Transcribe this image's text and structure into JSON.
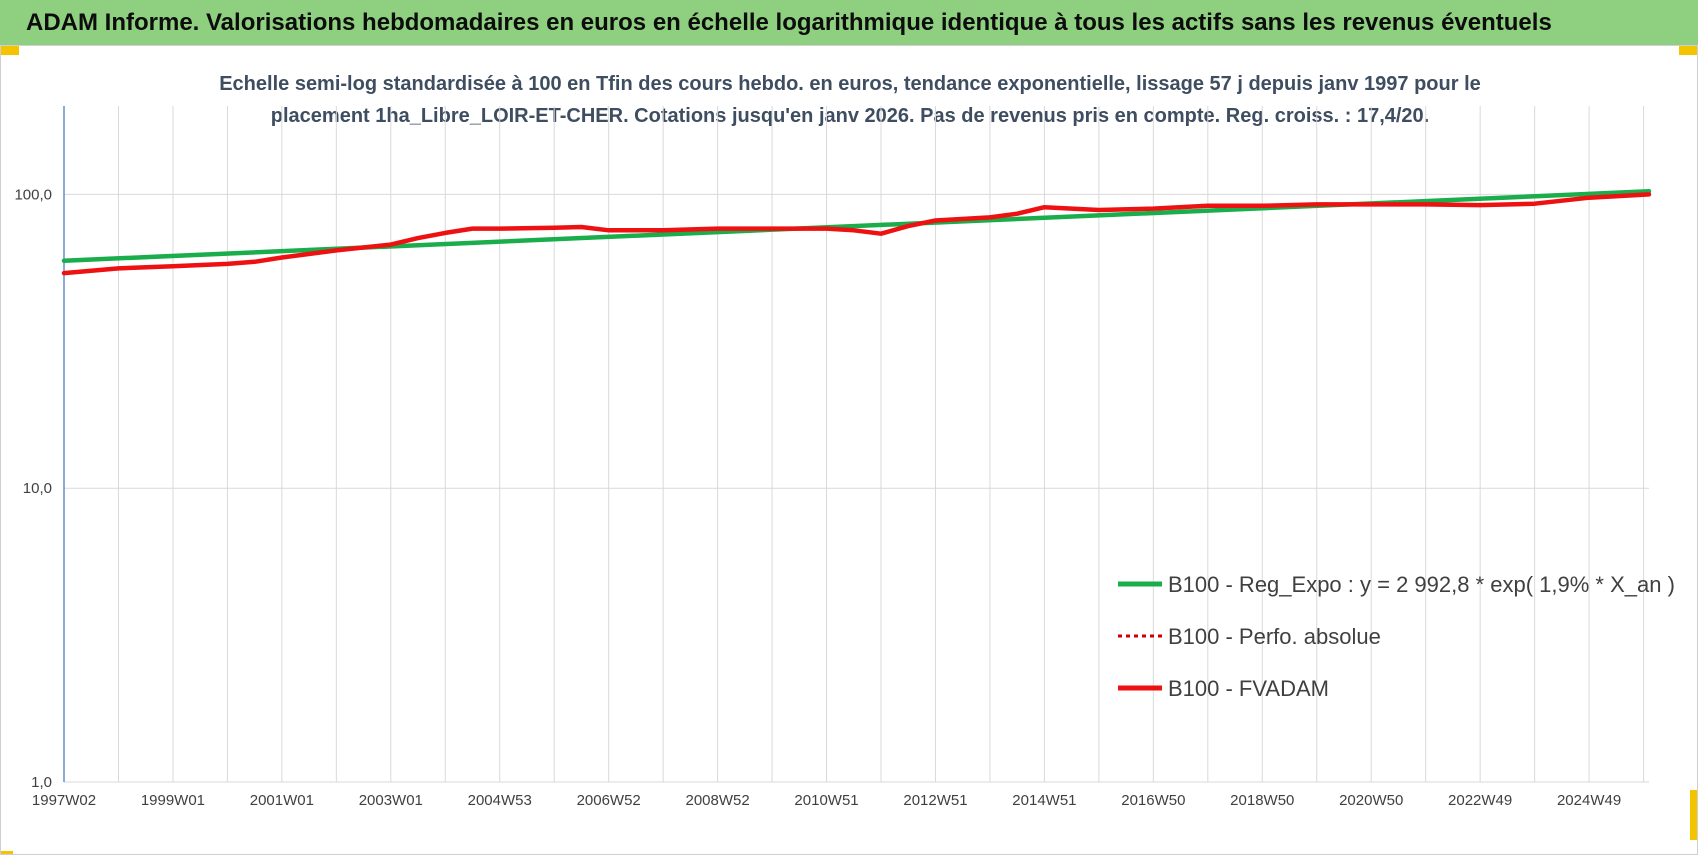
{
  "banner": {
    "title": "ADAM Informe. Valorisations hebdomadaires en euros en échelle logarithmique identique à tous les actifs sans les revenus éventuels"
  },
  "colors": {
    "banner_bg": "#8ed07f",
    "regression": "#1aad4b",
    "fvadam": "#ee1111",
    "perfo": "#cc0000",
    "gridline": "#d9d9d9",
    "axis": "#4472c4",
    "corner_marks": "#f5c400"
  },
  "chart_data": {
    "type": "line",
    "title_lines": [
      "Echelle semi-log standardisée à 100 en Tfin des cours hebdo. en euros, tendance exponentielle, lissage 57 j depuis janv 1997 pour le",
      "placement 1ha_Libre_LOIR-ET-CHER. Cotations jusqu'en janv 2026. Pas de revenus pris en compte. Reg. croiss. : 17,4/20."
    ],
    "y_scale": "log",
    "ylim": [
      1,
      200
    ],
    "y_ticks": [
      1,
      10,
      100
    ],
    "y_tick_labels": [
      "1,0",
      "10,0",
      "100,0"
    ],
    "xlim": [
      1997.0,
      2026.1
    ],
    "x_ticks": [
      1997.0,
      1999.0,
      2001.0,
      2003.0,
      2005.0,
      2007.0,
      2009.0,
      2011.0,
      2013.0,
      2015.0,
      2017.0,
      2019.0,
      2021.0,
      2023.0,
      2025.0
    ],
    "x_tick_labels": [
      "1997W02",
      "1999W01",
      "2001W01",
      "2003W01",
      "2004W53",
      "2006W52",
      "2008W52",
      "2010W51",
      "2012W51",
      "2014W51",
      "2016W50",
      "2018W50",
      "2020W50",
      "2022W49",
      "2024W49"
    ],
    "grid": true,
    "legend_position": "bottom-right",
    "series": [
      {
        "name": "B100 - Reg_Expo : y = 2 992,8 * exp( 1,9% *  X_an )",
        "style": "solid",
        "color": "#1aad4b",
        "x": [
          1997.0,
          2026.1
        ],
        "values": [
          59.5,
          102.5
        ]
      },
      {
        "name": "B100 - Perfo. absolue",
        "style": "dotted",
        "color": "#cc0000",
        "x": [],
        "values": []
      },
      {
        "name": "B100 - FVADAM",
        "style": "solid",
        "color": "#ee1111",
        "x": [
          1997.0,
          1998.0,
          1999.0,
          2000.0,
          2000.5,
          2001.0,
          2002.0,
          2003.0,
          2003.5,
          2004.0,
          2004.5,
          2005.0,
          2006.0,
          2006.5,
          2007.0,
          2008.0,
          2009.0,
          2010.0,
          2011.0,
          2011.5,
          2012.0,
          2012.5,
          2013.0,
          2014.0,
          2014.5,
          2015.0,
          2016.0,
          2017.0,
          2018.0,
          2019.0,
          2020.0,
          2021.0,
          2022.0,
          2023.0,
          2024.0,
          2025.0,
          2026.1
        ],
        "values": [
          54.0,
          56.0,
          57.0,
          58.0,
          59.0,
          61.0,
          64.5,
          67.5,
          71.0,
          74.0,
          76.5,
          76.5,
          77.0,
          77.5,
          75.5,
          75.5,
          76.5,
          76.5,
          76.5,
          75.5,
          73.5,
          78.0,
          81.5,
          83.5,
          86.0,
          90.5,
          88.5,
          89.5,
          91.5,
          91.5,
          92.5,
          92.5,
          92.5,
          92.0,
          93.0,
          97.5,
          100.0
        ]
      }
    ]
  }
}
